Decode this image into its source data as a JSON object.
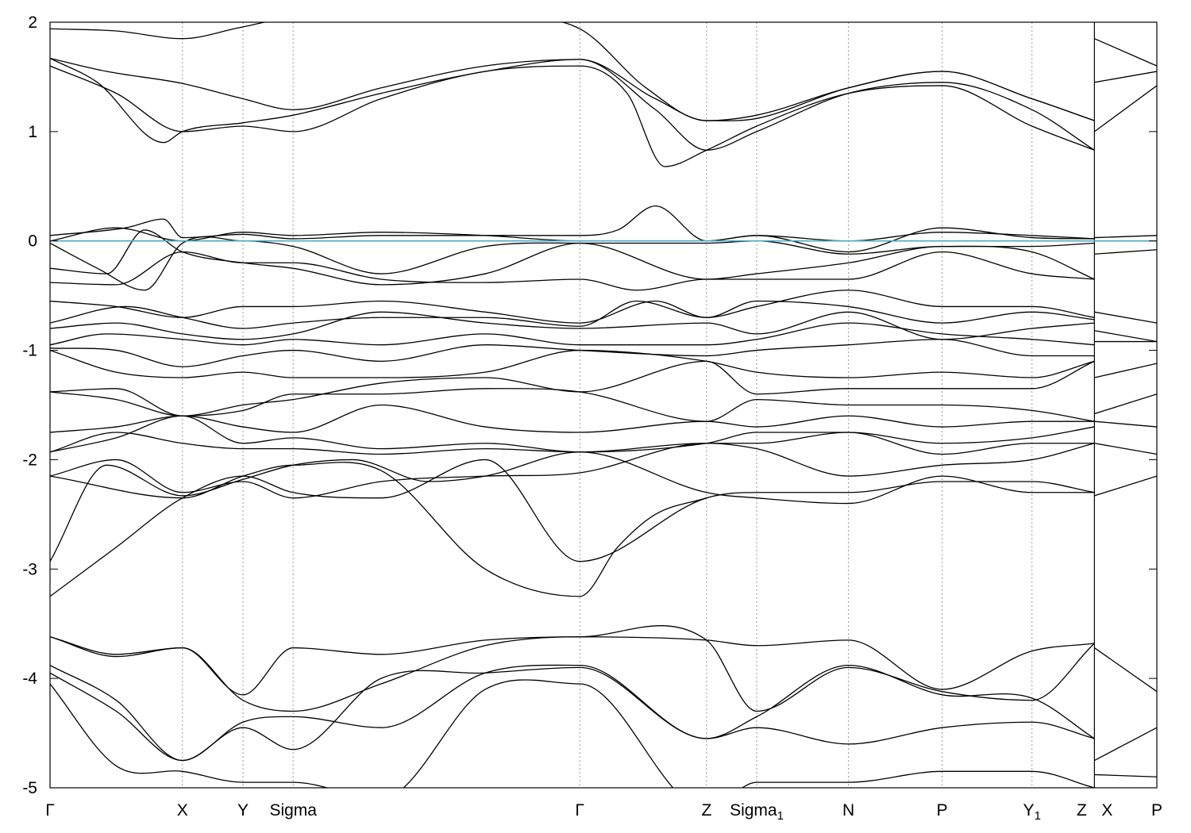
{
  "chart_data": {
    "type": "line",
    "title": "",
    "xlabel": "",
    "ylabel": "",
    "ylim": [
      -5,
      2
    ],
    "yticks": [
      2,
      1,
      0,
      -1,
      -2,
      -3,
      -4,
      -5
    ],
    "ytick_labels": [
      "2",
      "1",
      "0",
      "-1",
      "-2",
      "-3",
      "-4",
      "-5"
    ],
    "fermi_level": 0,
    "fermi_color": "#4fa8c4",
    "band_color": "#000000",
    "grid": "vertical dotted at k-points",
    "legend": "none",
    "kpoints": [
      {
        "label": "Γ",
        "sub": "",
        "x": 0.0
      },
      {
        "label": "X",
        "sub": "",
        "x": 1.4
      },
      {
        "label": "Y",
        "sub": "",
        "x": 2.04
      },
      {
        "label": "Sigma",
        "sub": "",
        "x": 2.57
      },
      {
        "label": "Γ",
        "sub": "",
        "x": 5.6
      },
      {
        "label": "Z",
        "sub": "",
        "x": 6.94
      },
      {
        "label": "Sigma",
        "sub": "1",
        "x": 7.47
      },
      {
        "label": "N",
        "sub": "",
        "x": 8.44
      },
      {
        "label": "P",
        "sub": "",
        "x": 9.43
      },
      {
        "label": "Y",
        "sub": "1",
        "x": 10.38
      },
      {
        "label": "Z",
        "sub": "",
        "x": 11.04
      },
      {
        "label": "X",
        "sub": "",
        "x": 11.04
      },
      {
        "label": "P",
        "sub": "",
        "x": 11.7
      }
    ],
    "xlim": [
      0,
      11.7
    ],
    "discontinuity_x": 11.04,
    "series": [
      {
        "x": [
          0,
          0.7,
          1.4,
          2.0,
          2.57,
          3.5,
          4.6,
          5.6,
          6.3,
          6.94,
          7.47,
          8.44,
          9.43,
          10.38,
          11.04
        ],
        "y": [
          1.94,
          1.92,
          1.85,
          1.95,
          2.05,
          2.1,
          2.05,
          1.94,
          1.4,
          1.1,
          1.12,
          1.4,
          1.55,
          1.3,
          1.1
        ]
      },
      {
        "x": [
          0,
          0.6,
          1.4,
          2.04,
          2.57,
          3.5,
          4.6,
          5.6,
          6.4,
          6.94,
          7.47,
          8.44,
          9.43,
          10.38,
          11.04
        ],
        "y": [
          1.67,
          1.55,
          1.44,
          1.3,
          1.2,
          1.4,
          1.6,
          1.66,
          1.3,
          1.1,
          1.15,
          1.4,
          1.55,
          1.3,
          1.1
        ]
      },
      {
        "x": [
          0,
          0.5,
          1.2,
          1.4,
          2.04,
          2.57,
          3.5,
          4.6,
          5.6,
          6.4,
          6.94,
          7.47,
          8.44,
          9.43,
          10.38,
          11.04
        ],
        "y": [
          1.67,
          1.45,
          0.9,
          1.0,
          1.08,
          1.15,
          1.35,
          1.55,
          1.66,
          1.2,
          0.83,
          1.0,
          1.35,
          1.45,
          1.2,
          0.83
        ]
      },
      {
        "x": [
          0,
          0.7,
          1.4,
          2.04,
          2.57,
          3.5,
          4.6,
          5.6,
          6.1,
          6.5,
          6.94,
          7.47,
          8.44,
          9.43,
          10.38,
          11.04
        ],
        "y": [
          1.6,
          1.35,
          1.0,
          1.05,
          1.0,
          1.3,
          1.55,
          1.6,
          1.35,
          0.68,
          0.83,
          1.05,
          1.35,
          1.42,
          1.05,
          0.83
        ]
      },
      {
        "x": [
          0,
          0.8,
          1.2,
          1.4,
          2.04,
          2.57,
          3.5,
          4.6,
          5.6,
          6.0,
          6.4,
          6.94,
          7.47,
          8.44,
          9.43,
          10.38,
          11.04
        ],
        "y": [
          0.05,
          0.12,
          0.2,
          0.03,
          0.06,
          0.02,
          0.05,
          0.05,
          0.05,
          0.1,
          0.32,
          0.0,
          0.05,
          -0.1,
          0.12,
          0.03,
          0.02
        ]
      },
      {
        "x": [
          0,
          0.7,
          1.4,
          2.04,
          2.57,
          3.5,
          4.6,
          5.6,
          6.94,
          7.47,
          8.44,
          9.43,
          10.38,
          11.04
        ],
        "y": [
          0.0,
          0.12,
          0.0,
          0.08,
          0.05,
          0.08,
          0.05,
          0.0,
          0.0,
          0.05,
          0.0,
          0.08,
          0.05,
          0.02
        ]
      },
      {
        "x": [
          0,
          0.5,
          1.0,
          1.4,
          2.04,
          2.57,
          3.5,
          4.6,
          5.6,
          6.94,
          7.47,
          8.44,
          9.43,
          10.38,
          11.04
        ],
        "y": [
          -0.02,
          -0.25,
          -0.45,
          -0.02,
          0.0,
          -0.05,
          -0.3,
          -0.05,
          -0.02,
          -0.02,
          0.0,
          -0.12,
          -0.05,
          -0.05,
          -0.02
        ]
      },
      {
        "x": [
          0,
          0.6,
          1.0,
          1.4,
          2.04,
          2.57,
          3.5,
          4.6,
          5.6,
          6.94,
          7.47,
          8.44,
          9.43,
          10.38,
          11.04
        ],
        "y": [
          -0.25,
          -0.3,
          0.1,
          -0.1,
          -0.2,
          -0.25,
          -0.4,
          -0.3,
          -0.02,
          -0.35,
          -0.3,
          -0.2,
          -0.05,
          -0.1,
          -0.35
        ]
      },
      {
        "x": [
          0,
          0.7,
          1.4,
          2.04,
          2.57,
          3.5,
          4.6,
          5.6,
          6.2,
          6.94,
          7.47,
          8.44,
          9.43,
          10.38,
          11.04
        ],
        "y": [
          -0.38,
          -0.4,
          -0.1,
          -0.2,
          -0.2,
          -0.35,
          -0.38,
          -0.35,
          -0.45,
          -0.35,
          -0.35,
          -0.35,
          -0.1,
          -0.3,
          -0.35
        ]
      },
      {
        "x": [
          0,
          0.7,
          1.4,
          2.04,
          2.57,
          3.5,
          4.6,
          5.6,
          6.4,
          6.94,
          7.47,
          8.44,
          9.43,
          10.38,
          11.04
        ],
        "y": [
          -0.55,
          -0.6,
          -0.7,
          -0.6,
          -0.6,
          -0.55,
          -0.65,
          -0.75,
          -0.55,
          -0.7,
          -0.6,
          -0.45,
          -0.6,
          -0.6,
          -0.7
        ]
      },
      {
        "x": [
          0,
          0.8,
          1.4,
          2.04,
          2.57,
          3.5,
          4.6,
          5.6,
          6.2,
          6.94,
          7.47,
          8.44,
          9.43,
          10.38,
          11.04
        ],
        "y": [
          -0.75,
          -0.6,
          -0.7,
          -0.8,
          -0.75,
          -0.7,
          -0.7,
          -0.78,
          -0.55,
          -0.7,
          -0.55,
          -0.6,
          -0.75,
          -0.65,
          -0.72
        ]
      },
      {
        "x": [
          0,
          0.7,
          1.4,
          2.04,
          2.57,
          3.5,
          4.6,
          5.6,
          6.94,
          7.47,
          8.44,
          9.43,
          10.38,
          11.04
        ],
        "y": [
          -0.8,
          -0.75,
          -0.85,
          -0.9,
          -0.85,
          -0.65,
          -0.75,
          -0.8,
          -0.75,
          -0.85,
          -0.65,
          -0.9,
          -0.8,
          -0.75
        ]
      },
      {
        "x": [
          0,
          0.6,
          1.4,
          2.04,
          2.57,
          3.5,
          4.6,
          5.6,
          6.94,
          7.47,
          8.44,
          9.43,
          10.38,
          11.04
        ],
        "y": [
          -0.95,
          -0.85,
          -0.9,
          -0.95,
          -0.9,
          -0.95,
          -0.85,
          -0.95,
          -0.95,
          -0.9,
          -0.75,
          -0.85,
          -0.9,
          -0.95
        ]
      },
      {
        "x": [
          0,
          0.7,
          1.4,
          2.04,
          2.57,
          3.5,
          4.6,
          5.6,
          6.94,
          7.47,
          8.44,
          9.43,
          10.38,
          11.04
        ],
        "y": [
          -0.98,
          -1.0,
          -1.15,
          -1.05,
          -1.0,
          -1.1,
          -0.95,
          -1.0,
          -1.05,
          -1.0,
          -0.95,
          -0.9,
          -1.05,
          -1.05
        ]
      },
      {
        "x": [
          0,
          0.7,
          1.4,
          2.04,
          2.57,
          3.5,
          4.6,
          5.6,
          6.94,
          7.47,
          8.44,
          9.43,
          10.38,
          11.04
        ],
        "y": [
          -1.0,
          -1.2,
          -1.25,
          -1.2,
          -1.25,
          -1.25,
          -1.2,
          -1.0,
          -1.1,
          -1.2,
          -1.25,
          -1.2,
          -1.25,
          -1.1
        ]
      },
      {
        "x": [
          0,
          0.7,
          1.4,
          2.04,
          2.57,
          3.5,
          4.6,
          5.6,
          6.94,
          7.47,
          8.44,
          9.43,
          10.38,
          11.04
        ],
        "y": [
          -1.38,
          -1.35,
          -1.6,
          -1.5,
          -1.45,
          -1.3,
          -1.25,
          -1.38,
          -1.1,
          -1.4,
          -1.35,
          -1.35,
          -1.35,
          -1.1
        ]
      },
      {
        "x": [
          0,
          0.7,
          1.4,
          2.04,
          2.57,
          3.5,
          4.6,
          5.6,
          6.94,
          7.47,
          8.44,
          9.43,
          10.38,
          11.04
        ],
        "y": [
          -1.38,
          -1.45,
          -1.6,
          -1.55,
          -1.4,
          -1.4,
          -1.35,
          -1.38,
          -1.65,
          -1.45,
          -1.5,
          -1.5,
          -1.55,
          -1.65
        ]
      },
      {
        "x": [
          0,
          0.7,
          1.4,
          2.04,
          2.57,
          3.5,
          4.6,
          5.6,
          6.94,
          7.47,
          8.44,
          9.43,
          10.38,
          11.04
        ],
        "y": [
          -1.75,
          -1.7,
          -1.6,
          -1.7,
          -1.75,
          -1.5,
          -1.7,
          -1.75,
          -1.65,
          -1.7,
          -1.6,
          -1.7,
          -1.65,
          -1.65
        ]
      },
      {
        "x": [
          0,
          0.7,
          1.4,
          2.04,
          2.57,
          3.5,
          4.6,
          5.6,
          6.94,
          7.47,
          8.44,
          9.43,
          10.38,
          11.04
        ],
        "y": [
          -1.93,
          -1.8,
          -1.6,
          -1.85,
          -1.8,
          -1.9,
          -1.85,
          -1.93,
          -1.85,
          -1.75,
          -1.75,
          -1.85,
          -1.8,
          -1.7
        ]
      },
      {
        "x": [
          0,
          0.7,
          1.4,
          2.04,
          2.57,
          3.5,
          4.6,
          5.6,
          6.94,
          7.47,
          8.44,
          9.43,
          10.38,
          11.04
        ],
        "y": [
          -1.93,
          -1.75,
          -1.85,
          -1.9,
          -1.9,
          -1.95,
          -1.9,
          -1.93,
          -1.85,
          -1.85,
          -1.75,
          -1.95,
          -1.85,
          -1.85
        ]
      },
      {
        "x": [
          0,
          0.7,
          1.4,
          2.04,
          2.57,
          3.5,
          4.6,
          5.6,
          6.94,
          7.47,
          8.44,
          9.43,
          10.38,
          11.04
        ],
        "y": [
          -2.15,
          -2.0,
          -2.3,
          -2.2,
          -2.35,
          -2.2,
          -2.15,
          -2.12,
          -1.85,
          -1.9,
          -2.15,
          -2.05,
          -2.0,
          -1.85
        ]
      },
      {
        "x": [
          0,
          0.6,
          1.4,
          2.04,
          2.57,
          3.2,
          4.0,
          4.6,
          5.6,
          6.94,
          7.47,
          8.44,
          9.43,
          10.38,
          11.04
        ],
        "y": [
          -2.93,
          -2.05,
          -2.33,
          -2.18,
          -2.05,
          -2.0,
          -2.2,
          -2.15,
          -1.93,
          -2.3,
          -2.35,
          -2.4,
          -2.15,
          -2.3,
          -2.3
        ]
      },
      {
        "x": [
          0,
          0.7,
          1.4,
          2.04,
          2.57,
          3.5,
          4.6,
          5.6,
          6.94,
          7.47,
          8.44,
          9.43,
          10.38,
          11.04
        ],
        "y": [
          -3.25,
          -2.8,
          -2.35,
          -2.15,
          -2.3,
          -2.35,
          -2.0,
          -2.93,
          -2.35,
          -2.3,
          -2.3,
          -2.2,
          -2.2,
          -2.3
        ]
      },
      {
        "x": [
          0,
          1.4,
          2.04,
          2.57,
          3.5,
          4.6,
          5.6,
          6.0,
          6.4,
          6.94
        ],
        "y": [
          -2.15,
          -2.35,
          -2.15,
          -2.05,
          -2.1,
          -3.0,
          -3.25,
          -2.8,
          -2.5,
          -2.35
        ]
      },
      {
        "x": [
          0,
          0.7,
          1.4,
          2.04,
          2.57,
          3.5,
          4.6,
          5.6,
          6.94,
          7.47,
          8.44,
          9.43,
          10.38,
          11.04
        ],
        "y": [
          -3.62,
          -3.78,
          -3.72,
          -4.15,
          -3.72,
          -3.78,
          -3.65,
          -3.62,
          -3.65,
          -3.7,
          -3.65,
          -4.1,
          -3.75,
          -3.68
        ]
      },
      {
        "x": [
          0,
          0.7,
          1.4,
          2.04,
          2.57,
          3.5,
          4.6,
          5.6,
          6.94,
          7.47,
          8.44,
          9.43,
          10.38,
          11.04
        ],
        "y": [
          -3.62,
          -3.8,
          -3.72,
          -4.2,
          -4.3,
          -4.05,
          -3.7,
          -3.62,
          -3.65,
          -4.3,
          -3.9,
          -4.12,
          -4.2,
          -3.68
        ]
      },
      {
        "x": [
          0,
          0.7,
          1.4,
          2.04,
          2.57,
          3.5,
          4.6,
          5.6,
          6.94,
          7.47,
          8.44,
          9.43,
          10.38,
          11.04
        ],
        "y": [
          -3.88,
          -4.2,
          -4.75,
          -4.4,
          -4.35,
          -4.45,
          -3.95,
          -3.88,
          -4.55,
          -4.35,
          -3.88,
          -4.15,
          -4.18,
          -4.55
        ]
      },
      {
        "x": [
          0,
          0.7,
          1.4,
          2.04,
          2.57,
          3.5,
          4.6,
          5.6,
          6.94,
          7.47,
          8.44,
          9.43,
          10.38,
          11.04
        ],
        "y": [
          -3.95,
          -4.3,
          -4.75,
          -4.45,
          -4.65,
          -4.0,
          -3.95,
          -3.9,
          -4.55,
          -4.45,
          -4.6,
          -4.45,
          -4.4,
          -4.55
        ]
      },
      {
        "x": [
          0,
          0.7,
          1.4,
          2.04,
          2.57,
          3.5,
          4.6,
          5.6,
          6.94,
          7.47,
          8.44,
          9.43,
          10.38,
          11.04
        ],
        "y": [
          -4.05,
          -4.8,
          -4.85,
          -4.95,
          -4.95,
          -5.1,
          -4.1,
          -4.05,
          -5.2,
          -4.95,
          -4.95,
          -4.85,
          -4.85,
          -5.0
        ]
      },
      {
        "x": [
          11.04,
          11.7
        ],
        "y": [
          1.85,
          1.6
        ]
      },
      {
        "x": [
          11.04,
          11.7
        ],
        "y": [
          1.45,
          1.55
        ]
      },
      {
        "x": [
          11.04,
          11.7
        ],
        "y": [
          1.0,
          1.42
        ]
      },
      {
        "x": [
          11.04,
          11.7
        ],
        "y": [
          0.03,
          0.05
        ]
      },
      {
        "x": [
          11.04,
          11.7
        ],
        "y": [
          -0.12,
          -0.08
        ]
      },
      {
        "x": [
          11.04,
          11.7
        ],
        "y": [
          -0.65,
          -0.75
        ]
      },
      {
        "x": [
          11.04,
          11.7
        ],
        "y": [
          -0.82,
          -0.92
        ]
      },
      {
        "x": [
          11.04,
          11.7
        ],
        "y": [
          -0.92,
          -0.92
        ]
      },
      {
        "x": [
          11.04,
          11.7
        ],
        "y": [
          -1.25,
          -1.12
        ]
      },
      {
        "x": [
          11.04,
          11.7
        ],
        "y": [
          -1.58,
          -1.4
        ]
      },
      {
        "x": [
          11.04,
          11.7
        ],
        "y": [
          -1.65,
          -1.7
        ]
      },
      {
        "x": [
          11.04,
          11.7
        ],
        "y": [
          -1.85,
          -1.95
        ]
      },
      {
        "x": [
          11.04,
          11.7
        ],
        "y": [
          -2.33,
          -2.15
        ]
      },
      {
        "x": [
          11.04,
          11.7
        ],
        "y": [
          -3.72,
          -4.12
        ]
      },
      {
        "x": [
          11.04,
          11.7
        ],
        "y": [
          -4.75,
          -4.45
        ]
      },
      {
        "x": [
          11.04,
          11.7
        ],
        "y": [
          -4.88,
          -4.9
        ]
      }
    ]
  }
}
